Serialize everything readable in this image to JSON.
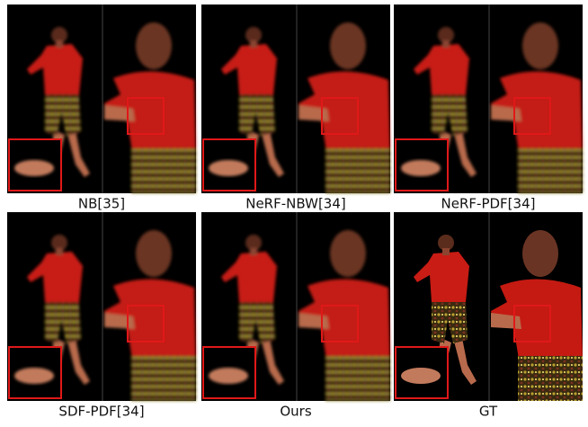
{
  "panels": [
    {
      "label": "NB[35]"
    },
    {
      "label": "NeRF-NBW[34]"
    },
    {
      "label": "NeRF-PDF[34]"
    },
    {
      "label": "SDF-PDF[34]"
    },
    {
      "label": "Ours"
    },
    {
      "label": "GT"
    }
  ]
}
